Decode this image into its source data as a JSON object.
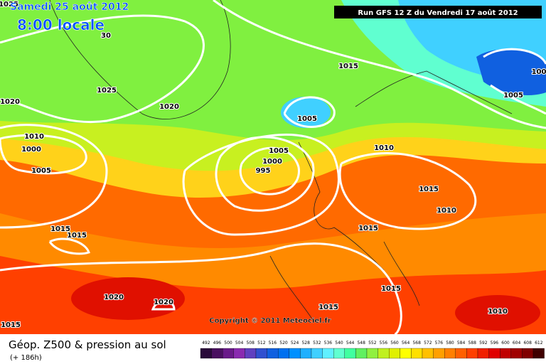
{
  "header": {
    "date": "Samedi 25 août 2012",
    "time": "8:00 locale",
    "run": "Run GFS 12 Z du Vendredi 17 août 2012"
  },
  "map": {
    "copyright": "Copyright © 2011 Meteociel.fr",
    "isobar_labels": [
      "1025",
      "30",
      "1015",
      "1025",
      "1020",
      "1020",
      "1005",
      "1010",
      "1000",
      "1005",
      "1005",
      "1000",
      "995",
      "1010",
      "1015",
      "1010",
      "1015",
      "1015",
      "1015",
      "1020",
      "1020",
      "1015",
      "1015",
      "1010",
      "1015",
      "1005",
      "100"
    ]
  },
  "footer": {
    "title": "Géop. Z500 & pression au sol",
    "lead": "(+ 186h)"
  },
  "colorbar": {
    "values": [
      492,
      496,
      500,
      504,
      508,
      512,
      516,
      520,
      524,
      528,
      532,
      536,
      540,
      544,
      548,
      552,
      556,
      560,
      564,
      568,
      572,
      576,
      580,
      584,
      588,
      592,
      596,
      600,
      604,
      608,
      612
    ],
    "colors": [
      "#2a0a3a",
      "#4a1060",
      "#6a1a8a",
      "#8a2ab0",
      "#6040c0",
      "#3050d0",
      "#1060e0",
      "#0070f0",
      "#0090ff",
      "#20b0ff",
      "#40d0ff",
      "#60f0ff",
      "#60ffd0",
      "#40ffa0",
      "#60f060",
      "#90f040",
      "#c0f020",
      "#e0f000",
      "#ffff00",
      "#ffe000",
      "#ffc000",
      "#ffa000",
      "#ff8000",
      "#ff6000",
      "#ff4000",
      "#f02000",
      "#e00000",
      "#c00000",
      "#a00000",
      "#800000",
      "#400000"
    ]
  }
}
